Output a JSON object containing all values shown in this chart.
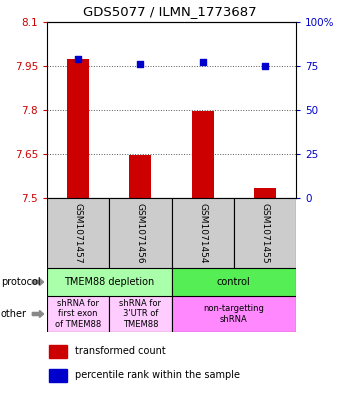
{
  "title": "GDS5077 / ILMN_1773687",
  "samples": [
    "GSM1071457",
    "GSM1071456",
    "GSM1071454",
    "GSM1071455"
  ],
  "transformed_counts": [
    7.975,
    7.645,
    7.795,
    7.535
  ],
  "percentile_ranks": [
    79,
    76,
    77,
    75
  ],
  "ylim_left": [
    7.5,
    8.1
  ],
  "yticks_left": [
    7.5,
    7.65,
    7.8,
    7.95,
    8.1
  ],
  "ylim_right": [
    0,
    100
  ],
  "yticks_right": [
    0,
    25,
    50,
    75,
    100
  ],
  "ytick_labels_right": [
    "0",
    "25",
    "50",
    "75",
    "100%"
  ],
  "bar_color": "#cc0000",
  "dot_color": "#0000cc",
  "bar_bottom": 7.5,
  "protocol_labels": [
    "TMEM88 depletion",
    "control"
  ],
  "protocol_colors": [
    "#aaffaa",
    "#55ee55"
  ],
  "other_label_0": "shRNA for\nfirst exon\nof TMEM88",
  "other_label_1": "shRNA for\n3'UTR of\nTMEM88",
  "other_label_2": "non-targetting\nshRNA",
  "other_color_left": "#ffccff",
  "other_color_right": "#ff88ff",
  "sample_box_color": "#cccccc",
  "grid_color": "#555555",
  "background_color": "#ffffff",
  "left_tick_color": "#cc0000",
  "right_tick_color": "#0000cc"
}
